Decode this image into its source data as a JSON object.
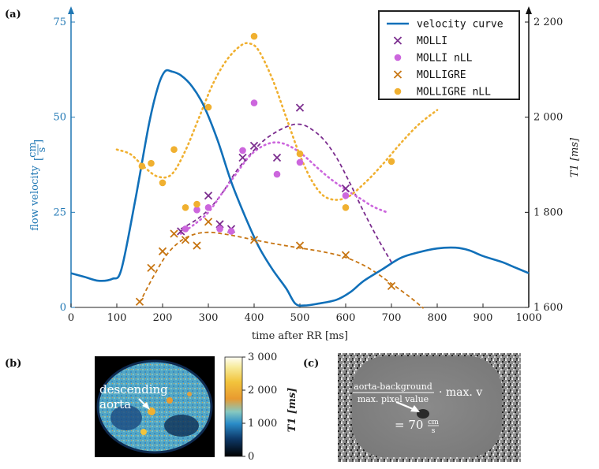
{
  "panels": {
    "a": "(a)",
    "b": "(b)",
    "c": "(c)"
  },
  "colors": {
    "velocity": "#1170b9",
    "molli": "#7b2d8e",
    "molli_nll": "#cc66dd",
    "molligre": "#c77512",
    "molligre_nll": "#f0b030"
  },
  "chart_data": [
    {
      "type": "line",
      "title": "",
      "xlabel": "time after RR [ms]",
      "ylabel_left": "flow velocity [cm/s]",
      "ylabel_left_frac": {
        "num": "cm",
        "den": "s",
        "prefix": "flow velocity"
      },
      "ylabel_right": "T1 [ms]",
      "xlim": [
        0,
        1000
      ],
      "ylim_left": [
        0,
        75
      ],
      "ylim_right": [
        1600,
        2200
      ],
      "x_ticks": [
        0,
        100,
        200,
        300,
        400,
        500,
        600,
        700,
        800,
        900,
        1000
      ],
      "y_left_ticks": [
        0,
        25,
        50,
        75
      ],
      "y_right_ticks": [
        {
          "value": 1600,
          "label": "1 600"
        },
        {
          "value": 1800,
          "label": "1 800"
        },
        {
          "value": 2000,
          "label": "2 000"
        },
        {
          "value": 2200,
          "label": "2 200"
        }
      ],
      "legend_position": "top-right",
      "series": [
        {
          "name": "velocity curve",
          "axis": "left",
          "style": "line",
          "x": [
            0,
            30,
            60,
            90,
            110,
            140,
            170,
            190,
            205,
            220,
            240,
            265,
            290,
            320,
            350,
            380,
            410,
            440,
            470,
            490,
            510,
            540,
            580,
            610,
            640,
            680,
            720,
            760,
            800,
            840,
            870,
            900,
            940,
            970,
            1000
          ],
          "y": [
            9,
            8,
            7,
            7.5,
            10,
            28,
            48,
            58,
            62,
            62,
            61,
            58,
            53,
            44,
            33,
            24,
            16,
            10,
            5,
            1,
            0.5,
            1,
            2,
            4,
            7,
            10,
            13,
            14.5,
            15.5,
            15.7,
            15,
            13.5,
            12,
            10.5,
            9
          ]
        },
        {
          "name": "MOLLI",
          "axis": "right",
          "style": "x",
          "x": [
            240,
            300,
            325,
            350,
            375,
            400,
            450,
            500,
            600
          ],
          "y": [
            1760,
            1835,
            1775,
            1765,
            1915,
            1940,
            1915,
            2020,
            1850
          ]
        },
        {
          "name": "MOLLI nLL",
          "axis": "right",
          "style": "dot",
          "x": [
            250,
            275,
            300,
            325,
            350,
            375,
            400,
            450,
            500,
            600
          ],
          "y": [
            1765,
            1805,
            1810,
            1765,
            1760,
            1930,
            2030,
            1880,
            1905,
            1835
          ]
        },
        {
          "name": "MOLLIGRE",
          "axis": "right",
          "style": "x",
          "x": [
            150,
            175,
            200,
            225,
            250,
            275,
            300,
            400,
            500,
            600,
            700
          ],
          "y": [
            1612,
            1683,
            1718,
            1755,
            1742,
            1730,
            1780,
            1742,
            1730,
            1710,
            1645
          ]
        },
        {
          "name": "MOLLIGRE nLL",
          "axis": "right",
          "style": "dot",
          "x": [
            155,
            175,
            200,
            225,
            250,
            275,
            300,
            400,
            500,
            600,
            700
          ],
          "y": [
            1897,
            1903,
            1862,
            1932,
            1810,
            1817,
            2021,
            2170,
            1923,
            1810,
            1907
          ]
        }
      ],
      "fits": [
        {
          "name": "MOLLI fit",
          "style": "dashed",
          "x": [
            240,
            270,
            300,
            330,
            360,
            390,
            420,
            450,
            480,
            500,
            520,
            550,
            580,
            610,
            640,
            670,
            700
          ],
          "y": [
            1765,
            1782,
            1805,
            1840,
            1885,
            1920,
            1950,
            1970,
            1983,
            1985,
            1978,
            1955,
            1915,
            1860,
            1800,
            1745,
            1695
          ]
        },
        {
          "name": "MOLLI nLL fit",
          "style": "dotted",
          "x": [
            240,
            270,
            300,
            330,
            360,
            390,
            420,
            450,
            480,
            510,
            540,
            570,
            600,
            630,
            660,
            690
          ],
          "y": [
            1755,
            1775,
            1800,
            1840,
            1880,
            1918,
            1940,
            1947,
            1938,
            1918,
            1892,
            1868,
            1848,
            1830,
            1812,
            1800
          ]
        },
        {
          "name": "MOLLIGRE fit",
          "style": "dashed",
          "x": [
            150,
            180,
            210,
            240,
            270,
            300,
            330,
            360,
            400,
            450,
            500,
            550,
            600,
            650,
            700,
            740,
            770
          ],
          "y": [
            1610,
            1665,
            1712,
            1740,
            1754,
            1758,
            1755,
            1750,
            1742,
            1733,
            1725,
            1717,
            1705,
            1683,
            1650,
            1622,
            1598
          ]
        },
        {
          "name": "MOLLIGRE nLL fit",
          "style": "dotted",
          "x": [
            100,
            130,
            160,
            190,
            220,
            250,
            280,
            310,
            340,
            370,
            390,
            410,
            440,
            470,
            500,
            530,
            560,
            600,
            640,
            680,
            720,
            760,
            800
          ],
          "y": [
            1932,
            1922,
            1895,
            1875,
            1880,
            1930,
            2000,
            2070,
            2120,
            2150,
            2155,
            2140,
            2080,
            2000,
            1920,
            1860,
            1830,
            1830,
            1860,
            1900,
            1945,
            1985,
            2015
          ]
        }
      ]
    }
  ],
  "panel_b": {
    "annotation": [
      "descending",
      "aorta"
    ],
    "colorbar_label": "T1 [ms]",
    "colorbar_ticks": [
      {
        "value": 3000,
        "label": "3 000"
      },
      {
        "value": 2000,
        "label": "2 000"
      },
      {
        "value": 1000,
        "label": "1 000"
      },
      {
        "value": 0,
        "label": "0"
      }
    ]
  },
  "panel_c": {
    "numerator": "aorta-background",
    "denominator": "max. pixel value",
    "suffix": "· max. v",
    "result_prefix": "= 70",
    "result_unit_num": "cm",
    "result_unit_den": "s"
  }
}
